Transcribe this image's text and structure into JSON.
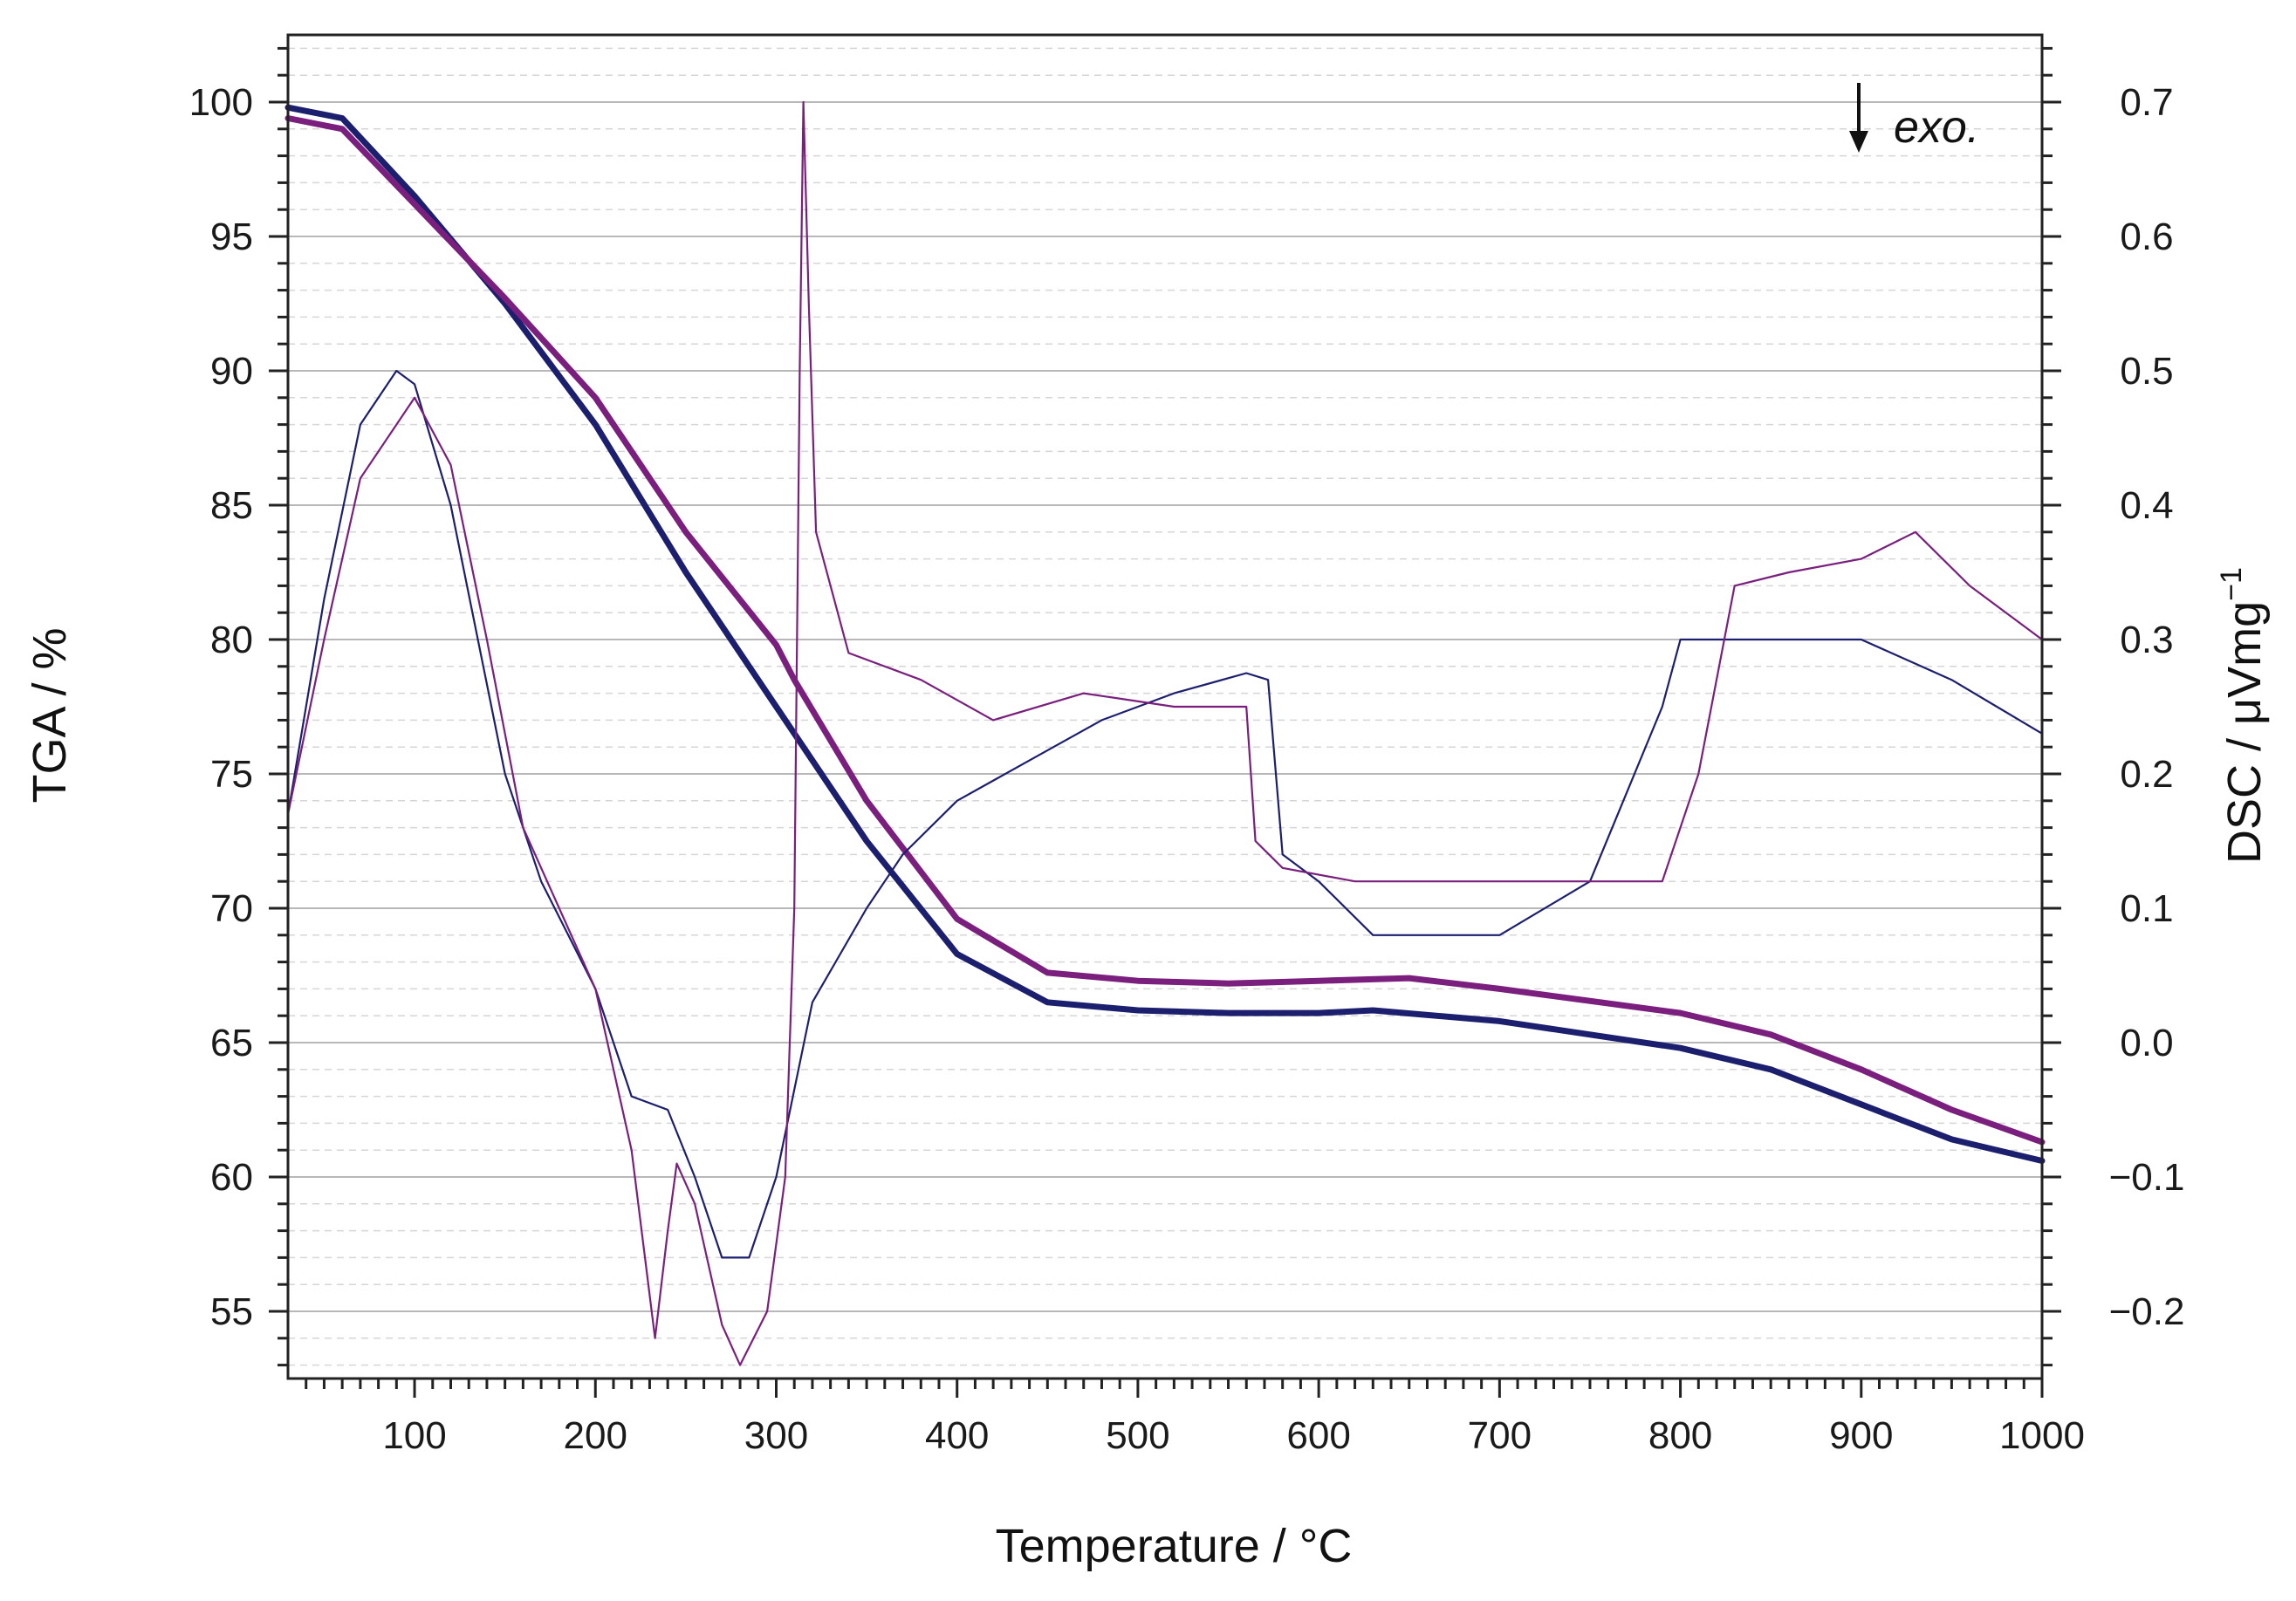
{
  "chart_data": {
    "type": "line",
    "title": "",
    "xlabel": "Temperature / °C",
    "ylabel_left": "TGA / %",
    "ylabel_right_main": "DSC / μVmg",
    "ylabel_right_sup": "−1",
    "annotation": "exo.",
    "xlim": [
      30,
      1000
    ],
    "ylim_left": [
      52.5,
      102.5
    ],
    "ylim_right": [
      -0.25,
      0.75
    ],
    "grid": true,
    "x_ticks": [
      "100",
      "200",
      "300",
      "400",
      "500",
      "600",
      "700",
      "800",
      "900",
      "1000"
    ],
    "y_left_ticks": [
      "55",
      "60",
      "65",
      "70",
      "75",
      "80",
      "85",
      "90",
      "95",
      "100"
    ],
    "y_right_ticks": [
      "−0.2",
      "−0.1",
      "0.0",
      "0.1",
      "0.2",
      "0.3",
      "0.4",
      "0.5",
      "0.6",
      "0.7"
    ],
    "colors": {
      "navy": "#1c1f6e",
      "purple": "#7a1f7d"
    },
    "series": [
      {
        "axis": "left",
        "color": "#1c1f6e",
        "kind": "tga",
        "points": [
          [
            30,
            99.8
          ],
          [
            60,
            99.4
          ],
          [
            100,
            96.5
          ],
          [
            150,
            92.5
          ],
          [
            200,
            88
          ],
          [
            250,
            82.5
          ],
          [
            300,
            77.5
          ],
          [
            350,
            72.5
          ],
          [
            400,
            68.3
          ],
          [
            450,
            66.5
          ],
          [
            500,
            66.2
          ],
          [
            550,
            66.1
          ],
          [
            600,
            66.1
          ],
          [
            630,
            66.2
          ],
          [
            700,
            65.8
          ],
          [
            800,
            64.8
          ],
          [
            850,
            64
          ],
          [
            900,
            62.7
          ],
          [
            950,
            61.4
          ],
          [
            1000,
            60.6
          ]
        ]
      },
      {
        "axis": "left",
        "color": "#7a1f7d",
        "kind": "tga",
        "points": [
          [
            30,
            99.4
          ],
          [
            60,
            99
          ],
          [
            100,
            96.2
          ],
          [
            150,
            92.7
          ],
          [
            200,
            89
          ],
          [
            250,
            84
          ],
          [
            300,
            79.8
          ],
          [
            310,
            78.5
          ],
          [
            350,
            74
          ],
          [
            400,
            69.6
          ],
          [
            450,
            67.6
          ],
          [
            500,
            67.3
          ],
          [
            550,
            67.2
          ],
          [
            600,
            67.3
          ],
          [
            650,
            67.4
          ],
          [
            700,
            67
          ],
          [
            800,
            66.1
          ],
          [
            850,
            65.3
          ],
          [
            900,
            64
          ],
          [
            950,
            62.5
          ],
          [
            1000,
            61.3
          ]
        ]
      },
      {
        "axis": "right",
        "color": "#1c1f6e",
        "kind": "dsc",
        "points": [
          [
            30,
            0.17
          ],
          [
            50,
            0.33
          ],
          [
            70,
            0.46
          ],
          [
            90,
            0.5
          ],
          [
            100,
            0.49
          ],
          [
            120,
            0.4
          ],
          [
            150,
            0.2
          ],
          [
            170,
            0.12
          ],
          [
            200,
            0.04
          ],
          [
            220,
            -0.04
          ],
          [
            240,
            -0.05
          ],
          [
            255,
            -0.1
          ],
          [
            270,
            -0.16
          ],
          [
            285,
            -0.16
          ],
          [
            300,
            -0.1
          ],
          [
            320,
            0.03
          ],
          [
            350,
            0.1
          ],
          [
            370,
            0.14
          ],
          [
            400,
            0.18
          ],
          [
            440,
            0.21
          ],
          [
            480,
            0.24
          ],
          [
            520,
            0.26
          ],
          [
            560,
            0.275
          ],
          [
            572,
            0.27
          ],
          [
            580,
            0.14
          ],
          [
            600,
            0.12
          ],
          [
            630,
            0.08
          ],
          [
            700,
            0.08
          ],
          [
            750,
            0.12
          ],
          [
            790,
            0.25
          ],
          [
            800,
            0.3
          ],
          [
            860,
            0.3
          ],
          [
            900,
            0.3
          ],
          [
            950,
            0.27
          ],
          [
            1000,
            0.23
          ]
        ]
      },
      {
        "axis": "right",
        "color": "#7a1f7d",
        "kind": "dsc",
        "points": [
          [
            30,
            0.17
          ],
          [
            50,
            0.3
          ],
          [
            70,
            0.42
          ],
          [
            100,
            0.48
          ],
          [
            120,
            0.43
          ],
          [
            140,
            0.3
          ],
          [
            160,
            0.16
          ],
          [
            180,
            0.1
          ],
          [
            200,
            0.04
          ],
          [
            220,
            -0.08
          ],
          [
            233,
            -0.22
          ],
          [
            240,
            -0.14
          ],
          [
            245,
            -0.09
          ],
          [
            255,
            -0.12
          ],
          [
            270,
            -0.21
          ],
          [
            280,
            -0.24
          ],
          [
            295,
            -0.2
          ],
          [
            305,
            -0.1
          ],
          [
            310,
            0.1
          ],
          [
            313,
            0.5
          ],
          [
            315,
            0.7
          ],
          [
            318,
            0.55
          ],
          [
            322,
            0.38
          ],
          [
            340,
            0.29
          ],
          [
            380,
            0.27
          ],
          [
            420,
            0.24
          ],
          [
            470,
            0.26
          ],
          [
            520,
            0.25
          ],
          [
            560,
            0.25
          ],
          [
            565,
            0.15
          ],
          [
            580,
            0.13
          ],
          [
            620,
            0.12
          ],
          [
            700,
            0.12
          ],
          [
            790,
            0.12
          ],
          [
            810,
            0.2
          ],
          [
            830,
            0.34
          ],
          [
            860,
            0.35
          ],
          [
            900,
            0.36
          ],
          [
            930,
            0.38
          ],
          [
            960,
            0.34
          ],
          [
            1000,
            0.3
          ]
        ]
      }
    ]
  }
}
